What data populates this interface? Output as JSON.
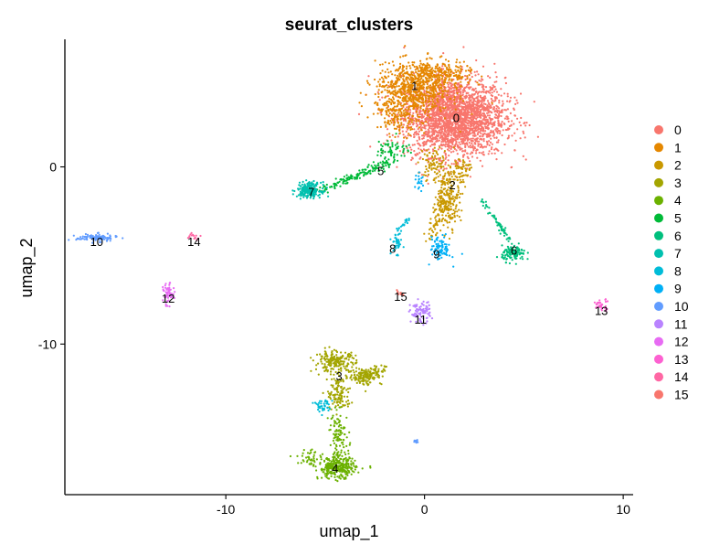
{
  "chart_data": {
    "type": "scatter",
    "title": "seurat_clusters",
    "xlabel": "umap_1",
    "ylabel": "umap_2",
    "xlim": [
      -18.1,
      10.5
    ],
    "ylim": [
      -18.5,
      7.2
    ],
    "xticks": [
      -10,
      0,
      10
    ],
    "yticks": [
      0,
      -10
    ],
    "xtick_labels": [
      "-10",
      "0",
      "10"
    ],
    "ytick_labels": [
      "0",
      "-10"
    ],
    "grid": false,
    "legend_position": "right",
    "legend": [
      "0",
      "1",
      "2",
      "3",
      "4",
      "5",
      "6",
      "7",
      "8",
      "9",
      "10",
      "11",
      "12",
      "13",
      "14",
      "15"
    ],
    "colors": [
      "#F8766D",
      "#E58700",
      "#C99800",
      "#A3A500",
      "#6BB100",
      "#00BA38",
      "#00BF7D",
      "#00C0AF",
      "#00BCD8",
      "#00B0F6",
      "#619CFF",
      "#B983FF",
      "#E76BF3",
      "#FD61D1",
      "#FF67A4",
      "#F8766D"
    ],
    "series": [
      {
        "name": "0",
        "label_pos": [
          1.6,
          2.8
        ],
        "blobs": [
          {
            "cx": 1.5,
            "cy": 2.8,
            "sx": 1.5,
            "sy": 1.3,
            "n": 2600
          }
        ]
      },
      {
        "name": "1",
        "label_pos": [
          -0.5,
          4.6
        ],
        "blobs": [
          {
            "cx": -0.6,
            "cy": 4.3,
            "sx": 1.1,
            "sy": 0.9,
            "n": 700
          },
          {
            "cx": 0.7,
            "cy": 5.2,
            "sx": 1.0,
            "sy": 0.45,
            "n": 250
          },
          {
            "cx": -1.3,
            "cy": 2.8,
            "sx": 0.6,
            "sy": 0.6,
            "n": 120
          }
        ]
      },
      {
        "name": "2",
        "label_pos": [
          1.4,
          -1.0
        ],
        "blobs": [
          {
            "cx": 1.2,
            "cy": -1.8,
            "sx": 0.35,
            "sy": 0.9,
            "n": 220
          },
          {
            "cx": 0.5,
            "cy": 0.1,
            "sx": 0.4,
            "sy": 0.6,
            "n": 90
          },
          {
            "cx": 1.8,
            "cy": -0.2,
            "sx": 0.3,
            "sy": 0.5,
            "n": 70
          }
        ],
        "lines": [
          {
            "x1": 0.9,
            "y1": -2.0,
            "x2": 0.2,
            "y2": -4.2,
            "w": 0.15,
            "n": 60
          }
        ]
      },
      {
        "name": "3",
        "label_pos": [
          -4.3,
          -11.8
        ],
        "blobs": [
          {
            "cx": -4.5,
            "cy": -11.0,
            "sx": 0.6,
            "sy": 0.35,
            "n": 200
          },
          {
            "cx": -3.0,
            "cy": -11.8,
            "sx": 0.5,
            "sy": 0.3,
            "n": 110
          },
          {
            "cx": -4.3,
            "cy": -12.8,
            "sx": 0.35,
            "sy": 0.6,
            "n": 120
          }
        ],
        "lines": [
          {
            "x1": -3.5,
            "y1": -11.9,
            "x2": -2.0,
            "y2": -11.4,
            "w": 0.15,
            "n": 60
          }
        ]
      },
      {
        "name": "4",
        "label_pos": [
          -4.5,
          -17.0
        ],
        "blobs": [
          {
            "cx": -4.4,
            "cy": -17.0,
            "sx": 0.55,
            "sy": 0.35,
            "n": 300
          },
          {
            "cx": -4.3,
            "cy": -15.2,
            "sx": 0.3,
            "sy": 0.8,
            "n": 110
          },
          {
            "cx": -5.7,
            "cy": -16.4,
            "sx": 0.4,
            "sy": 0.3,
            "n": 40
          }
        ]
      },
      {
        "name": "5",
        "label_pos": [
          -2.2,
          -0.2
        ],
        "blobs": [
          {
            "cx": -1.6,
            "cy": 1.0,
            "sx": 0.5,
            "sy": 0.4,
            "n": 60
          }
        ],
        "lines": [
          {
            "x1": -5.2,
            "y1": -1.3,
            "x2": -1.7,
            "y2": 0.3,
            "w": 0.13,
            "n": 150
          }
        ]
      },
      {
        "name": "6",
        "label_pos": [
          4.5,
          -4.7
        ],
        "blobs": [
          {
            "cx": 4.5,
            "cy": -4.9,
            "sx": 0.35,
            "sy": 0.25,
            "n": 120
          }
        ],
        "lines": [
          {
            "x1": 2.9,
            "y1": -1.9,
            "x2": 4.3,
            "y2": -4.2,
            "w": 0.08,
            "n": 60
          }
        ]
      },
      {
        "name": "7",
        "label_pos": [
          -5.7,
          -1.4
        ],
        "blobs": [
          {
            "cx": -5.8,
            "cy": -1.3,
            "sx": 0.35,
            "sy": 0.25,
            "n": 220
          }
        ]
      },
      {
        "name": "8",
        "label_pos": [
          -1.6,
          -4.6
        ],
        "blobs": [
          {
            "cx": -1.4,
            "cy": -4.3,
            "sx": 0.15,
            "sy": 0.35,
            "n": 40
          },
          {
            "cx": -5.1,
            "cy": -13.5,
            "sx": 0.3,
            "sy": 0.25,
            "n": 40
          }
        ],
        "lines": [
          {
            "x1": -1.3,
            "y1": -3.6,
            "x2": -0.8,
            "y2": -2.9,
            "w": 0.06,
            "n": 20
          }
        ]
      },
      {
        "name": "9",
        "label_pos": [
          0.6,
          -4.9
        ],
        "blobs": [
          {
            "cx": 0.8,
            "cy": -4.6,
            "sx": 0.3,
            "sy": 0.4,
            "n": 90
          },
          {
            "cx": -0.2,
            "cy": -0.9,
            "sx": 0.12,
            "sy": 0.3,
            "n": 20
          }
        ]
      },
      {
        "name": "10",
        "label_pos": [
          -16.5,
          -4.2
        ],
        "blobs": [
          {
            "cx": -16.5,
            "cy": -4.0,
            "sx": 0.6,
            "sy": 0.12,
            "n": 110
          },
          {
            "cx": -0.4,
            "cy": -15.5,
            "sx": 0.1,
            "sy": 0.08,
            "n": 12
          }
        ]
      },
      {
        "name": "11",
        "label_pos": [
          -0.2,
          -8.6
        ],
        "blobs": [
          {
            "cx": -0.2,
            "cy": -8.2,
            "sx": 0.3,
            "sy": 0.35,
            "n": 90
          }
        ]
      },
      {
        "name": "12",
        "label_pos": [
          -12.9,
          -7.4
        ],
        "blobs": [
          {
            "cx": -12.9,
            "cy": -7.2,
            "sx": 0.15,
            "sy": 0.35,
            "n": 55
          }
        ]
      },
      {
        "name": "13",
        "label_pos": [
          8.9,
          -8.1
        ],
        "blobs": [
          {
            "cx": 8.9,
            "cy": -7.8,
            "sx": 0.25,
            "sy": 0.2,
            "n": 35
          }
        ]
      },
      {
        "name": "14",
        "label_pos": [
          -11.6,
          -4.2
        ],
        "blobs": [
          {
            "cx": -11.6,
            "cy": -3.9,
            "sx": 0.2,
            "sy": 0.12,
            "n": 15
          }
        ]
      },
      {
        "name": "15",
        "label_pos": [
          -1.2,
          -7.3
        ],
        "blobs": [
          {
            "cx": -1.3,
            "cy": -7.1,
            "sx": 0.12,
            "sy": 0.1,
            "n": 10
          }
        ]
      }
    ]
  }
}
